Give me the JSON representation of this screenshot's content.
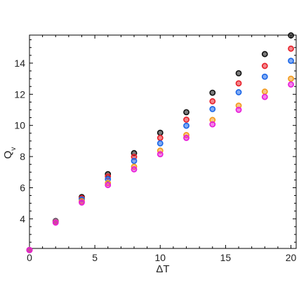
{
  "chart_data": {
    "type": "scatter",
    "title": "",
    "xlabel": "ΔT",
    "ylabel": "Q_v",
    "xlim": [
      0,
      20.4
    ],
    "ylim": [
      2.1,
      15.8
    ],
    "xticks": [
      0,
      5,
      10,
      15,
      20
    ],
    "yticks": [
      4,
      6,
      8,
      10,
      12,
      14
    ],
    "grid": false,
    "legend": "none",
    "x": [
      0,
      2,
      4,
      6,
      8,
      10,
      12,
      14,
      16,
      18,
      20
    ],
    "series": [
      {
        "color": "#111111",
        "values": [
          2.0,
          3.86,
          5.4,
          6.87,
          8.22,
          9.53,
          10.85,
          12.1,
          13.35,
          14.58,
          15.78
        ]
      },
      {
        "color": "#e8202a",
        "values": [
          2.0,
          3.84,
          5.33,
          6.72,
          7.98,
          9.2,
          10.37,
          11.55,
          12.7,
          13.82,
          14.93
        ]
      },
      {
        "color": "#1a66e8",
        "values": [
          2.0,
          3.82,
          5.25,
          6.55,
          7.72,
          8.85,
          9.98,
          11.05,
          12.13,
          13.13,
          14.15
        ]
      },
      {
        "color": "#f39a1d",
        "values": [
          2.0,
          3.79,
          5.13,
          6.3,
          7.35,
          8.38,
          9.38,
          10.35,
          11.27,
          12.17,
          13.0
        ]
      },
      {
        "color": "#e81ad8",
        "values": [
          2.0,
          3.76,
          5.05,
          6.17,
          7.18,
          8.15,
          9.2,
          10.07,
          11.0,
          11.83,
          12.63
        ]
      }
    ]
  }
}
